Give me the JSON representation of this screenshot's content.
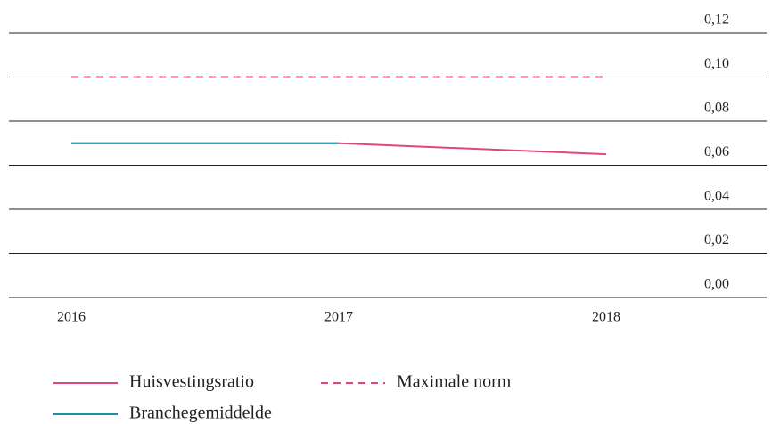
{
  "chart_data": {
    "type": "line",
    "categories": [
      "2016",
      "2017",
      "2018"
    ],
    "series": [
      {
        "name": "Huisvestingsratio",
        "color": "#e2457c",
        "style": "solid",
        "values": [
          0.07,
          0.07,
          0.065
        ]
      },
      {
        "name": "Maximale norm",
        "color": "#e2457c",
        "style": "dashed",
        "values": [
          0.1,
          0.1,
          0.1
        ]
      },
      {
        "name": "Branchegemiddelde",
        "color": "#1b8fa8",
        "style": "solid",
        "values": [
          0.07,
          0.07,
          null
        ]
      }
    ],
    "ylim": [
      0,
      0.12
    ],
    "yticks": [
      {
        "value": 0,
        "label": "0,00"
      },
      {
        "value": 0.02,
        "label": "0,02"
      },
      {
        "value": 0.04,
        "label": "0,04"
      },
      {
        "value": 0.06,
        "label": "0,06"
      },
      {
        "value": 0.08,
        "label": "0,08"
      },
      {
        "value": 0.1,
        "label": "0,10"
      },
      {
        "value": 0.12,
        "label": "0,12"
      }
    ],
    "grid": true
  }
}
